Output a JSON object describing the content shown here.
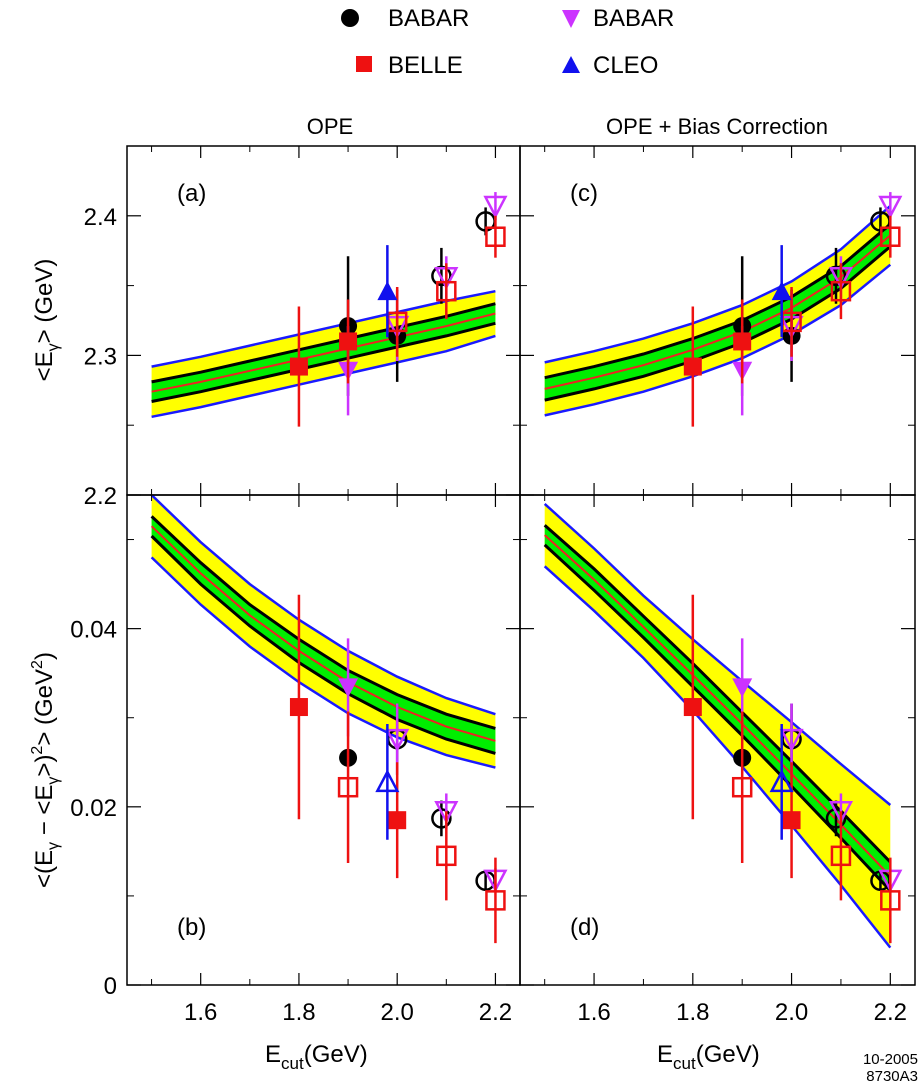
{
  "legend": {
    "items": [
      {
        "label": "BABAR",
        "marker": "circle-filled",
        "color": "#000000"
      },
      {
        "label": "BABAR",
        "marker": "triangle-down-filled",
        "color": "#cc33ff"
      },
      {
        "label": "BELLE",
        "marker": "square-filled",
        "color": "#ee1111"
      },
      {
        "label": "CLEO",
        "marker": "triangle-up-filled",
        "color": "#1111ee"
      }
    ]
  },
  "columns": {
    "left_title": "OPE",
    "right_title": "OPE + Bias Correction"
  },
  "axes": {
    "xlabel_main": "E",
    "xlabel_sub": "cut",
    "xlabel_unit": "(GeV)",
    "x_ticks": [
      "1.6",
      "1.8",
      "2.0",
      "2.2"
    ],
    "x_tick_values": [
      1.6,
      1.8,
      2.0,
      2.2
    ],
    "xlim": [
      1.45,
      2.25
    ],
    "top_ylabel": "<Eγ> (GeV)",
    "top_yticks": [
      "2.2",
      "2.3",
      "2.4"
    ],
    "top_ytick_values": [
      2.2,
      2.3,
      2.4
    ],
    "top_ylim": [
      2.2,
      2.45
    ],
    "bottom_ylabel": "<(Eγ − <Eγ>)²> (GeV²)",
    "bottom_yticks": [
      "0",
      "0.02",
      "0.04"
    ],
    "bottom_ytick_values": [
      0,
      0.02,
      0.04
    ],
    "bottom_ylim": [
      0,
      0.055
    ]
  },
  "footer": {
    "line1": "10-2005",
    "line2": "8730A3"
  },
  "colors": {
    "band_outer": "#ffff00",
    "band_inner": "#00ee00",
    "band_edge": "#1a1aff",
    "band_center": "#ee2222",
    "babar_circle": "#000000",
    "babar_tri": "#cc33ff",
    "belle": "#ee1111",
    "cleo": "#1111ee"
  },
  "chart_data": [
    {
      "panel": "(a)",
      "type": "line-band-with-points",
      "quantity": "mean",
      "band": {
        "x": [
          1.5,
          1.6,
          1.7,
          1.8,
          1.9,
          2.0,
          2.1,
          2.2
        ],
        "center": [
          2.274,
          2.281,
          2.289,
          2.297,
          2.305,
          2.313,
          2.321,
          2.33
        ],
        "inner": [
          0.007,
          0.007,
          0.007,
          0.007,
          0.007,
          0.007,
          0.007,
          0.007
        ],
        "outer": [
          0.018,
          0.018,
          0.018,
          0.018,
          0.018,
          0.018,
          0.018,
          0.016
        ]
      },
      "points": [
        {
          "set": "BABAR",
          "marker": "circle",
          "fill": true,
          "x": 1.9,
          "y": 2.321,
          "err": 0.05
        },
        {
          "set": "BABAR",
          "marker": "circle",
          "fill": true,
          "x": 2.0,
          "y": 2.314,
          "err": 0.033
        },
        {
          "set": "BABAR",
          "marker": "circle",
          "fill": false,
          "x": 2.09,
          "y": 2.357,
          "err": 0.02
        },
        {
          "set": "BABAR",
          "marker": "circle",
          "fill": false,
          "x": 2.18,
          "y": 2.396,
          "err": 0.01
        },
        {
          "set": "BABAR",
          "marker": "tri-down",
          "fill": true,
          "x": 1.9,
          "y": 2.289,
          "err": 0.032
        },
        {
          "set": "BABAR",
          "marker": "tri-down",
          "fill": false,
          "x": 2.0,
          "y": 2.321,
          "err": 0.025
        },
        {
          "set": "BABAR",
          "marker": "tri-down",
          "fill": false,
          "x": 2.1,
          "y": 2.356,
          "err": 0.015
        },
        {
          "set": "BABAR",
          "marker": "tri-down",
          "fill": false,
          "x": 2.2,
          "y": 2.407,
          "err": 0.01
        },
        {
          "set": "BELLE",
          "marker": "square",
          "fill": true,
          "x": 1.8,
          "y": 2.292,
          "err": 0.043
        },
        {
          "set": "BELLE",
          "marker": "square",
          "fill": true,
          "x": 1.9,
          "y": 2.31,
          "err": 0.03
        },
        {
          "set": "BELLE",
          "marker": "square",
          "fill": false,
          "x": 2.0,
          "y": 2.324,
          "err": 0.025
        },
        {
          "set": "BELLE",
          "marker": "square",
          "fill": false,
          "x": 2.1,
          "y": 2.346,
          "err": 0.02
        },
        {
          "set": "BELLE",
          "marker": "square",
          "fill": false,
          "x": 2.2,
          "y": 2.385,
          "err": 0.015
        },
        {
          "set": "CLEO",
          "marker": "tri-up",
          "fill": true,
          "x": 1.98,
          "y": 2.346,
          "err": 0.033
        }
      ]
    },
    {
      "panel": "(b)",
      "type": "line-band-with-points",
      "quantity": "variance",
      "band": {
        "x": [
          1.5,
          1.6,
          1.7,
          1.8,
          1.9,
          2.0,
          2.1,
          2.2
        ],
        "center": [
          0.0515,
          0.0462,
          0.0415,
          0.0375,
          0.034,
          0.0312,
          0.029,
          0.0274
        ],
        "inner": [
          0.0011,
          0.0012,
          0.0012,
          0.0013,
          0.0013,
          0.0014,
          0.0014,
          0.0014
        ],
        "outer": [
          0.0035,
          0.0035,
          0.0035,
          0.0035,
          0.0035,
          0.0034,
          0.0032,
          0.003
        ]
      },
      "points": [
        {
          "set": "BABAR",
          "marker": "circle",
          "fill": true,
          "x": 1.9,
          "y": 0.0255,
          "err": 0
        },
        {
          "set": "BABAR",
          "marker": "circle",
          "fill": false,
          "x": 2.0,
          "y": 0.0276,
          "err": 0.004
        },
        {
          "set": "BABAR",
          "marker": "circle",
          "fill": false,
          "x": 2.09,
          "y": 0.0187,
          "err": 0.002
        },
        {
          "set": "BABAR",
          "marker": "circle",
          "fill": false,
          "x": 2.18,
          "y": 0.0117,
          "err": 0.001
        },
        {
          "set": "BABAR",
          "marker": "tri-down",
          "fill": true,
          "x": 1.9,
          "y": 0.0334,
          "err": 0.0055
        },
        {
          "set": "BABAR",
          "marker": "tri-down",
          "fill": false,
          "x": 2.0,
          "y": 0.0276,
          "err": 0.004
        },
        {
          "set": "BABAR",
          "marker": "tri-down",
          "fill": false,
          "x": 2.1,
          "y": 0.0195,
          "err": 0.002
        },
        {
          "set": "BABAR",
          "marker": "tri-down",
          "fill": false,
          "x": 2.2,
          "y": 0.0118,
          "err": 0.0013
        },
        {
          "set": "BELLE",
          "marker": "square",
          "fill": true,
          "x": 1.8,
          "y": 0.0312,
          "err": 0.0126
        },
        {
          "set": "BELLE",
          "marker": "square",
          "fill": true,
          "x": 2.0,
          "y": 0.0185,
          "err": 0.0065
        },
        {
          "set": "BELLE",
          "marker": "square",
          "fill": false,
          "x": 1.9,
          "y": 0.0222,
          "err": 0.0085
        },
        {
          "set": "BELLE",
          "marker": "square",
          "fill": false,
          "x": 2.1,
          "y": 0.0145,
          "err": 0.005
        },
        {
          "set": "BELLE",
          "marker": "square",
          "fill": false,
          "x": 2.2,
          "y": 0.0095,
          "err": 0.0048
        },
        {
          "set": "CLEO",
          "marker": "tri-up",
          "fill": false,
          "x": 1.98,
          "y": 0.0228,
          "err": 0.0065
        }
      ]
    },
    {
      "panel": "(c)",
      "type": "line-band-with-points",
      "quantity": "mean",
      "band": {
        "x": [
          1.5,
          1.6,
          1.7,
          1.8,
          1.9,
          2.0,
          2.1,
          2.2
        ],
        "center": [
          2.276,
          2.284,
          2.293,
          2.304,
          2.317,
          2.334,
          2.356,
          2.386
        ],
        "inner": [
          0.008,
          0.008,
          0.008,
          0.008,
          0.008,
          0.008,
          0.008,
          0.008
        ],
        "outer": [
          0.019,
          0.019,
          0.019,
          0.019,
          0.019,
          0.019,
          0.02,
          0.021
        ]
      },
      "points": [
        {
          "set": "BABAR",
          "marker": "circle",
          "fill": true,
          "x": 1.9,
          "y": 2.321,
          "err": 0.05
        },
        {
          "set": "BABAR",
          "marker": "circle",
          "fill": true,
          "x": 2.0,
          "y": 2.314,
          "err": 0.033
        },
        {
          "set": "BABAR",
          "marker": "circle",
          "fill": false,
          "x": 2.09,
          "y": 2.357,
          "err": 0.02
        },
        {
          "set": "BABAR",
          "marker": "circle",
          "fill": false,
          "x": 2.18,
          "y": 2.396,
          "err": 0.01
        },
        {
          "set": "BABAR",
          "marker": "tri-down",
          "fill": true,
          "x": 1.9,
          "y": 2.289,
          "err": 0.032
        },
        {
          "set": "BABAR",
          "marker": "tri-down",
          "fill": false,
          "x": 2.0,
          "y": 2.321,
          "err": 0.025
        },
        {
          "set": "BABAR",
          "marker": "tri-down",
          "fill": false,
          "x": 2.1,
          "y": 2.356,
          "err": 0.015
        },
        {
          "set": "BABAR",
          "marker": "tri-down",
          "fill": false,
          "x": 2.2,
          "y": 2.407,
          "err": 0.01
        },
        {
          "set": "BELLE",
          "marker": "square",
          "fill": true,
          "x": 1.8,
          "y": 2.292,
          "err": 0.043
        },
        {
          "set": "BELLE",
          "marker": "square",
          "fill": true,
          "x": 1.9,
          "y": 2.31,
          "err": 0.03
        },
        {
          "set": "BELLE",
          "marker": "square",
          "fill": false,
          "x": 2.0,
          "y": 2.324,
          "err": 0.025
        },
        {
          "set": "BELLE",
          "marker": "square",
          "fill": false,
          "x": 2.1,
          "y": 2.346,
          "err": 0.02
        },
        {
          "set": "BELLE",
          "marker": "square",
          "fill": false,
          "x": 2.2,
          "y": 2.385,
          "err": 0.015
        },
        {
          "set": "CLEO",
          "marker": "tri-up",
          "fill": true,
          "x": 1.98,
          "y": 2.346,
          "err": 0.033
        }
      ]
    },
    {
      "panel": "(d)",
      "type": "line-band-with-points",
      "quantity": "variance",
      "band": {
        "x": [
          1.5,
          1.6,
          1.7,
          1.8,
          1.9,
          2.0,
          2.1,
          2.2
        ],
        "center": [
          0.0505,
          0.0455,
          0.0402,
          0.0348,
          0.0293,
          0.0237,
          0.018,
          0.0122
        ],
        "inner": [
          0.0011,
          0.0012,
          0.0012,
          0.0013,
          0.0013,
          0.0014,
          0.0015,
          0.0016
        ],
        "outer": [
          0.0035,
          0.0035,
          0.0035,
          0.004,
          0.0048,
          0.0058,
          0.0068,
          0.008
        ]
      },
      "points": [
        {
          "set": "BABAR",
          "marker": "circle",
          "fill": true,
          "x": 1.9,
          "y": 0.0255,
          "err": 0
        },
        {
          "set": "BABAR",
          "marker": "circle",
          "fill": false,
          "x": 2.0,
          "y": 0.0276,
          "err": 0.004
        },
        {
          "set": "BABAR",
          "marker": "circle",
          "fill": false,
          "x": 2.09,
          "y": 0.0187,
          "err": 0.002
        },
        {
          "set": "BABAR",
          "marker": "circle",
          "fill": false,
          "x": 2.18,
          "y": 0.0117,
          "err": 0.001
        },
        {
          "set": "BABAR",
          "marker": "tri-down",
          "fill": true,
          "x": 1.9,
          "y": 0.0334,
          "err": 0.0055
        },
        {
          "set": "BABAR",
          "marker": "tri-down",
          "fill": false,
          "x": 2.0,
          "y": 0.0276,
          "err": 0.004
        },
        {
          "set": "BABAR",
          "marker": "tri-down",
          "fill": false,
          "x": 2.1,
          "y": 0.0195,
          "err": 0.002
        },
        {
          "set": "BABAR",
          "marker": "tri-down",
          "fill": false,
          "x": 2.2,
          "y": 0.0118,
          "err": 0.0013
        },
        {
          "set": "BELLE",
          "marker": "square",
          "fill": true,
          "x": 1.8,
          "y": 0.0312,
          "err": 0.0126
        },
        {
          "set": "BELLE",
          "marker": "square",
          "fill": true,
          "x": 2.0,
          "y": 0.0185,
          "err": 0.0065
        },
        {
          "set": "BELLE",
          "marker": "square",
          "fill": false,
          "x": 1.9,
          "y": 0.0222,
          "err": 0.0085
        },
        {
          "set": "BELLE",
          "marker": "square",
          "fill": false,
          "x": 2.1,
          "y": 0.0145,
          "err": 0.005
        },
        {
          "set": "BELLE",
          "marker": "square",
          "fill": false,
          "x": 2.2,
          "y": 0.0095,
          "err": 0.0048
        },
        {
          "set": "CLEO",
          "marker": "tri-up",
          "fill": false,
          "x": 1.98,
          "y": 0.0228,
          "err": 0.0065
        }
      ]
    }
  ]
}
